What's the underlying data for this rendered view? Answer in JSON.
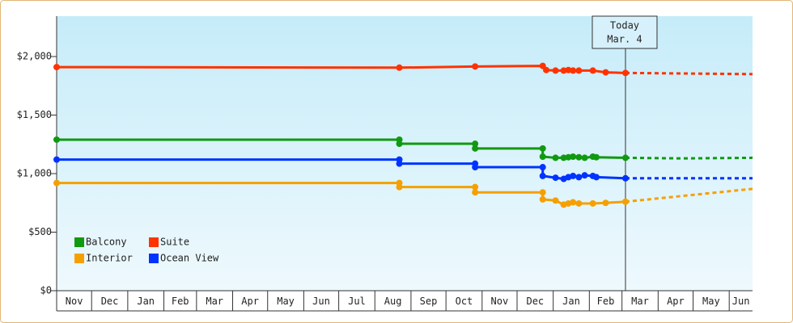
{
  "chart_data": {
    "type": "line",
    "xlim": [
      0,
      597
    ],
    "xticks": [
      {
        "value": 0,
        "label": "Nov"
      },
      {
        "value": 30,
        "label": "Dec"
      },
      {
        "value": 61,
        "label": "Jan"
      },
      {
        "value": 92,
        "label": "Feb"
      },
      {
        "value": 120,
        "label": "Mar"
      },
      {
        "value": 151,
        "label": "Apr"
      },
      {
        "value": 181,
        "label": "May"
      },
      {
        "value": 212,
        "label": "Jun"
      },
      {
        "value": 242,
        "label": "Jul"
      },
      {
        "value": 273,
        "label": "Aug"
      },
      {
        "value": 304,
        "label": "Sep"
      },
      {
        "value": 334,
        "label": "Oct"
      },
      {
        "value": 365,
        "label": "Nov"
      },
      {
        "value": 395,
        "label": "Dec"
      },
      {
        "value": 426,
        "label": "Jan"
      },
      {
        "value": 457,
        "label": "Feb"
      },
      {
        "value": 485,
        "label": "Mar"
      },
      {
        "value": 516,
        "label": "Apr"
      },
      {
        "value": 546,
        "label": "May"
      },
      {
        "value": 577,
        "label": "Jun"
      }
    ],
    "ylim": [
      0,
      2345
    ],
    "yticks": [
      {
        "value": 0,
        "label": "$0"
      },
      {
        "value": 500,
        "label": "$500"
      },
      {
        "value": 1000,
        "label": "$1,000"
      },
      {
        "value": 1500,
        "label": "$1,500"
      },
      {
        "value": 2000,
        "label": "$2,000"
      }
    ],
    "grid": false,
    "legend": "bottom-left",
    "today": {
      "x": 488,
      "label": "Today",
      "date": "Mar. 4"
    },
    "series": [
      {
        "name": "Balcony",
        "color": "#119911",
        "x": [
          0,
          294,
          294,
          359,
          359,
          417,
          417,
          428,
          435,
          439,
          443,
          448,
          453,
          460,
          463,
          488,
          537,
          597
        ],
        "values": [
          1290,
          1290,
          1255,
          1255,
          1215,
          1215,
          1145,
          1135,
          1135,
          1140,
          1145,
          1140,
          1135,
          1145,
          1140,
          1135,
          1130,
          1135
        ]
      },
      {
        "name": "Suite",
        "color": "#ff3300",
        "x": [
          0,
          294,
          359,
          417,
          420,
          428,
          435,
          439,
          443,
          448,
          460,
          471,
          488,
          542,
          597
        ],
        "values": [
          1910,
          1905,
          1915,
          1920,
          1885,
          1880,
          1880,
          1885,
          1880,
          1880,
          1880,
          1865,
          1860,
          1855,
          1850
        ]
      },
      {
        "name": "Interior",
        "color": "#f5a000",
        "x": [
          0,
          294,
          294,
          359,
          359,
          417,
          417,
          428,
          435,
          439,
          443,
          448,
          460,
          471,
          488,
          597
        ],
        "values": [
          920,
          920,
          885,
          885,
          840,
          840,
          780,
          770,
          735,
          745,
          755,
          745,
          745,
          750,
          760,
          870
        ]
      },
      {
        "name": "Ocean View",
        "color": "#0033ff",
        "x": [
          0,
          294,
          294,
          359,
          359,
          417,
          417,
          428,
          435,
          439,
          443,
          448,
          453,
          460,
          463,
          488,
          597
        ],
        "values": [
          1120,
          1120,
          1085,
          1085,
          1055,
          1055,
          980,
          965,
          955,
          970,
          980,
          970,
          985,
          980,
          970,
          960,
          960
        ]
      }
    ]
  }
}
